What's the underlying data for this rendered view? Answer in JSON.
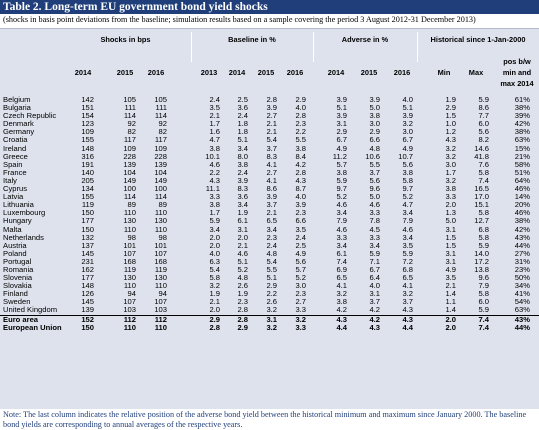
{
  "title": "Table 2. Long-term EU government bond yield shocks",
  "subtitle": "(shocks in basis point deviations from the baseline; simulation results based on a sample covering the period 3 August 2012-31 December 2013)",
  "groups": {
    "shocks": "Shocks in bps",
    "baseline": "Baseline in %",
    "adverse": "Adverse in %",
    "historical": "Historical since 1-Jan-2000"
  },
  "years": {
    "shocks": [
      "2014",
      "2015",
      "2016"
    ],
    "baseline": [
      "2013",
      "2014",
      "2015",
      "2016"
    ],
    "adverse": [
      "2014",
      "2015",
      "2016"
    ]
  },
  "hist_cols": {
    "min": "Min",
    "max": "Max",
    "pos": [
      "pos b/w",
      "min and",
      "max 2014"
    ]
  },
  "rows": [
    {
      "country": "Belgium",
      "v": [
        "142",
        "105",
        "105",
        "2.4",
        "2.5",
        "2.8",
        "2.9",
        "3.9",
        "3.9",
        "4.0",
        "1.9",
        "5.9",
        "61%"
      ]
    },
    {
      "country": "Bulgaria",
      "v": [
        "151",
        "111",
        "111",
        "3.5",
        "3.6",
        "3.9",
        "4.0",
        "5.1",
        "5.0",
        "5.1",
        "2.9",
        "8.6",
        "38%"
      ]
    },
    {
      "country": "Czech Republic",
      "v": [
        "154",
        "114",
        "114",
        "2.1",
        "2.4",
        "2.7",
        "2.8",
        "3.9",
        "3.8",
        "3.9",
        "1.5",
        "7.7",
        "39%"
      ]
    },
    {
      "country": "Denmark",
      "v": [
        "123",
        "92",
        "92",
        "1.7",
        "1.8",
        "2.1",
        "2.3",
        "3.1",
        "3.0",
        "3.2",
        "1.0",
        "6.0",
        "42%"
      ]
    },
    {
      "country": "Germany",
      "v": [
        "109",
        "82",
        "82",
        "1.6",
        "1.8",
        "2.1",
        "2.2",
        "2.9",
        "2.9",
        "3.0",
        "1.2",
        "5.6",
        "38%"
      ]
    },
    {
      "country": "Croatia",
      "v": [
        "155",
        "117",
        "117",
        "4.7",
        "5.1",
        "5.4",
        "5.5",
        "6.7",
        "6.6",
        "6.7",
        "4.3",
        "8.2",
        "63%"
      ]
    },
    {
      "country": "Ireland",
      "v": [
        "148",
        "109",
        "109",
        "3.8",
        "3.4",
        "3.7",
        "3.8",
        "4.9",
        "4.8",
        "4.9",
        "3.2",
        "14.6",
        "15%"
      ]
    },
    {
      "country": "Greece",
      "v": [
        "316",
        "228",
        "228",
        "10.1",
        "8.0",
        "8.3",
        "8.4",
        "11.2",
        "10.6",
        "10.7",
        "3.2",
        "41.8",
        "21%"
      ]
    },
    {
      "country": "Spain",
      "v": [
        "191",
        "139",
        "139",
        "4.6",
        "3.8",
        "4.1",
        "4.2",
        "5.7",
        "5.5",
        "5.6",
        "3.0",
        "7.6",
        "58%"
      ]
    },
    {
      "country": "France",
      "v": [
        "140",
        "104",
        "104",
        "2.2",
        "2.4",
        "2.7",
        "2.8",
        "3.8",
        "3.7",
        "3.8",
        "1.7",
        "5.8",
        "51%"
      ]
    },
    {
      "country": "Italy",
      "v": [
        "205",
        "149",
        "149",
        "4.3",
        "3.9",
        "4.1",
        "4.3",
        "5.9",
        "5.6",
        "5.8",
        "3.2",
        "7.4",
        "64%"
      ]
    },
    {
      "country": "Cyprus",
      "v": [
        "134",
        "100",
        "100",
        "11.1",
        "8.3",
        "8.6",
        "8.7",
        "9.7",
        "9.6",
        "9.7",
        "3.8",
        "16.5",
        "46%"
      ]
    },
    {
      "country": "Latvia",
      "v": [
        "155",
        "114",
        "114",
        "3.3",
        "3.6",
        "3.9",
        "4.0",
        "5.2",
        "5.0",
        "5.2",
        "3.3",
        "17.0",
        "14%"
      ]
    },
    {
      "country": "Lithuania",
      "v": [
        "119",
        "89",
        "89",
        "3.8",
        "3.4",
        "3.7",
        "3.9",
        "4.6",
        "4.6",
        "4.7",
        "2.0",
        "15.1",
        "20%"
      ]
    },
    {
      "country": "Luxembourg",
      "v": [
        "150",
        "110",
        "110",
        "1.7",
        "1.9",
        "2.1",
        "2.3",
        "3.4",
        "3.3",
        "3.4",
        "1.3",
        "5.8",
        "46%"
      ]
    },
    {
      "country": "Hungary",
      "v": [
        "177",
        "130",
        "130",
        "5.9",
        "6.1",
        "6.5",
        "6.6",
        "7.9",
        "7.8",
        "7.9",
        "5.0",
        "12.7",
        "38%"
      ]
    },
    {
      "country": "Malta",
      "v": [
        "150",
        "110",
        "110",
        "3.4",
        "3.1",
        "3.4",
        "3.5",
        "4.6",
        "4.5",
        "4.6",
        "3.1",
        "6.8",
        "42%"
      ]
    },
    {
      "country": "Netherlands",
      "v": [
        "132",
        "98",
        "98",
        "2.0",
        "2.0",
        "2.3",
        "2.4",
        "3.3",
        "3.3",
        "3.4",
        "1.5",
        "5.8",
        "43%"
      ]
    },
    {
      "country": "Austria",
      "v": [
        "137",
        "101",
        "101",
        "2.0",
        "2.1",
        "2.4",
        "2.5",
        "3.4",
        "3.4",
        "3.5",
        "1.5",
        "5.9",
        "44%"
      ]
    },
    {
      "country": "Poland",
      "v": [
        "145",
        "107",
        "107",
        "4.0",
        "4.6",
        "4.8",
        "4.9",
        "6.1",
        "5.9",
        "5.9",
        "3.1",
        "14.0",
        "27%"
      ]
    },
    {
      "country": "Portugal",
      "v": [
        "231",
        "168",
        "168",
        "6.3",
        "5.1",
        "5.4",
        "5.6",
        "7.4",
        "7.1",
        "7.2",
        "3.1",
        "17.2",
        "31%"
      ]
    },
    {
      "country": "Romania",
      "v": [
        "162",
        "119",
        "119",
        "5.4",
        "5.2",
        "5.5",
        "5.7",
        "6.9",
        "6.7",
        "6.8",
        "4.9",
        "13.8",
        "23%"
      ]
    },
    {
      "country": "Slovenia",
      "v": [
        "177",
        "130",
        "130",
        "5.8",
        "4.8",
        "5.1",
        "5.2",
        "6.5",
        "6.4",
        "6.5",
        "3.5",
        "9.6",
        "50%"
      ]
    },
    {
      "country": "Slovakia",
      "v": [
        "148",
        "110",
        "110",
        "3.2",
        "2.6",
        "2.9",
        "3.0",
        "4.1",
        "4.0",
        "4.1",
        "2.1",
        "7.9",
        "34%"
      ]
    },
    {
      "country": "Finland",
      "v": [
        "126",
        "94",
        "94",
        "1.9",
        "1.9",
        "2.2",
        "2.3",
        "3.2",
        "3.1",
        "3.2",
        "1.4",
        "5.8",
        "41%"
      ]
    },
    {
      "country": "Sweden",
      "v": [
        "145",
        "107",
        "107",
        "2.1",
        "2.3",
        "2.6",
        "2.7",
        "3.8",
        "3.7",
        "3.7",
        "1.1",
        "6.0",
        "54%"
      ]
    },
    {
      "country": "United Kingdom",
      "v": [
        "139",
        "103",
        "103",
        "2.0",
        "2.8",
        "3.2",
        "3.3",
        "4.2",
        "4.2",
        "4.3",
        "1.4",
        "5.9",
        "63%"
      ]
    }
  ],
  "aggregates": [
    {
      "country": "Euro area",
      "v": [
        "152",
        "112",
        "112",
        "2.9",
        "2.8",
        "3.1",
        "3.2",
        "4.3",
        "4.2",
        "4.3",
        "2.0",
        "7.4",
        "43%"
      ]
    },
    {
      "country": "European Union",
      "v": [
        "150",
        "110",
        "110",
        "2.8",
        "2.9",
        "3.2",
        "3.3",
        "4.4",
        "4.3",
        "4.4",
        "2.0",
        "7.4",
        "44%"
      ]
    }
  ],
  "note": "Note: The last column indicates the relative position of the adverse bond yield between the historical minimum and maximum since January 2000. The baseline bond yields are corresponding to annual averages of the respective years."
}
